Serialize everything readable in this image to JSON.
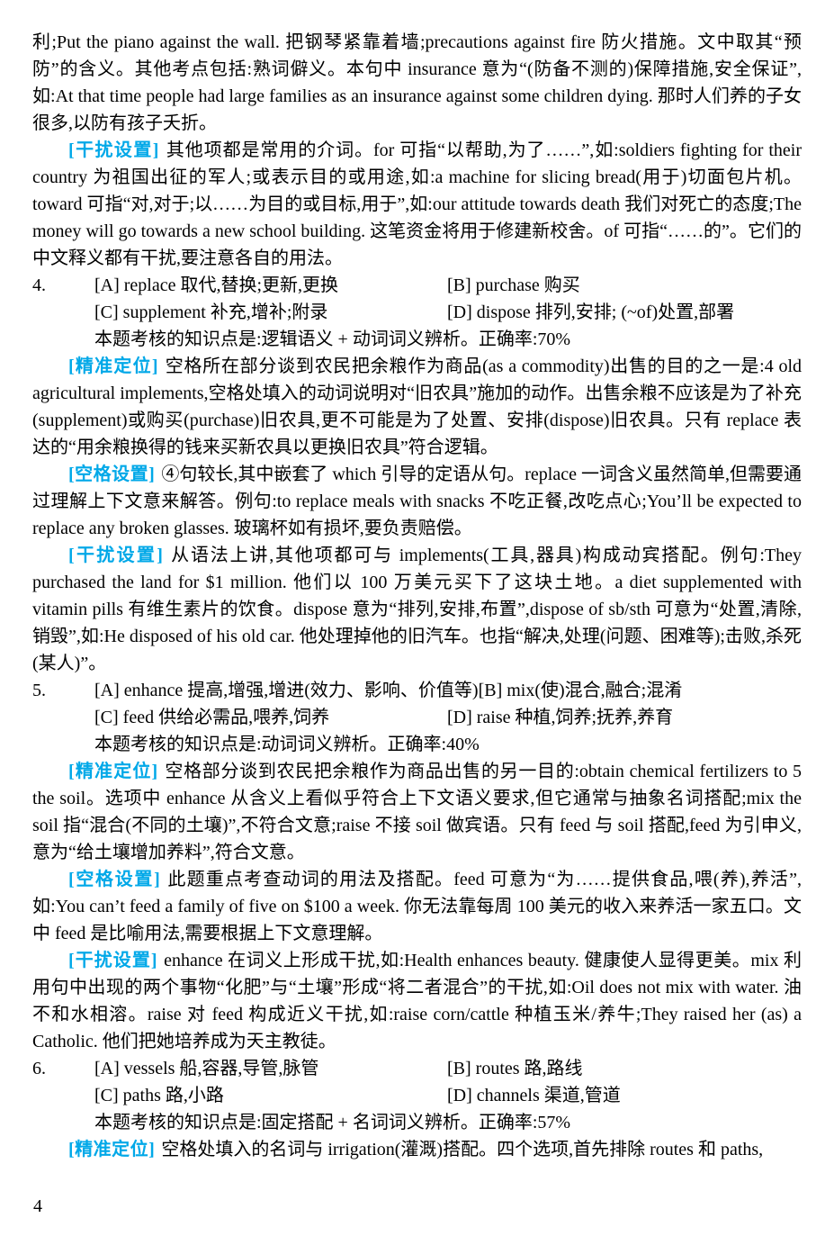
{
  "accent_color": "#00a8e8",
  "page_number": "4",
  "intro": {
    "para1": "利;Put the piano against the wall. 把钢琴紧靠着墙;precautions against fire 防火措施。文中取其“预防”的含义。其他考点包括:熟词僻义。本句中 insurance 意为“(防备不测的)保障措施,安全保证”,如:At that time people had large families as an insurance against some children dying. 那时人们养的子女很多,以防有孩子夭折。",
    "distractor": {
      "label": "[干扰设置]",
      "text": "其他项都是常用的介词。for 可指“以帮助,为了……”,如:soldiers fighting for their country 为祖国出征的军人;或表示目的或用途,如:a machine for slicing bread(用于)切面包片机。toward 可指“对,对于;以……为目的或目标,用于”,如:our attitude towards death 我们对死亡的态度;The money will go towards a new school building. 这笔资金将用于修建新校舍。of 可指“……的”。它们的中文释义都有干扰,要注意各自的用法。"
    }
  },
  "questions": [
    {
      "number": "4.",
      "options": {
        "a": "[A] replace 取代,替换;更新,更换",
        "b": "[B] purchase 购买",
        "c": "[C] supplement 补充,增补;附录",
        "d": "[D] dispose 排列,安排; (~of)处置,部署"
      },
      "knowledge": "本题考核的知识点是:逻辑语义 + 动词词义辨析。正确率:70%",
      "sections": [
        {
          "label": "[精准定位]",
          "text": "空格所在部分谈到农民把余粮作为商品(as a commodity)出售的目的之一是:4 old agricultural implements,空格处填入的动词说明对“旧农具”施加的动作。出售余粮不应该是为了补充(supplement)或购买(purchase)旧农具,更不可能是为了处置、安排(dispose)旧农具。只有 replace 表达的“用余粮换得的钱来买新农具以更换旧农具”符合逻辑。"
        },
        {
          "label": "[空格设置]",
          "text": "④句较长,其中嵌套了 which 引导的定语从句。replace 一词含义虽然简单,但需要通过理解上下文意来解答。例句:to replace meals with snacks 不吃正餐,改吃点心;You’ll be expected to replace any broken glasses. 玻璃杯如有损坏,要负责赔偿。"
        },
        {
          "label": "[干扰设置]",
          "text": "从语法上讲,其他项都可与 implements(工具,器具)构成动宾搭配。例句:They purchased the land for $1 million. 他们以 100 万美元买下了这块土地。a diet supplemented with vitamin pills 有维生素片的饮食。dispose 意为“排列,安排,布置”,dispose of sb/sth 可意为“处置,清除,销毁”,如:He disposed of his old car. 他处理掉他的旧汽车。也指“解决,处理(问题、困难等);击败,杀死(某人)”。"
        }
      ]
    },
    {
      "number": "5.",
      "options": {
        "a": "[A] enhance 提高,增强,增进(效力、影响、价值等)",
        "b": "[B] mix(使)混合,融合;混淆",
        "c": "[C] feed 供给必需品,喂养,饲养",
        "d": "[D] raise 种植,饲养;抚养,养育"
      },
      "knowledge": "本题考核的知识点是:动词词义辨析。正确率:40%",
      "sections": [
        {
          "label": "[精准定位]",
          "text": "空格部分谈到农民把余粮作为商品出售的另一目的:obtain chemical fertilizers to 5 the soil。选项中 enhance 从含义上看似乎符合上下文语义要求,但它通常与抽象名词搭配;mix the soil 指“混合(不同的土壤)”,不符合文意;raise 不接 soil 做宾语。只有 feed 与 soil 搭配,feed 为引申义,意为“给土壤增加养料”,符合文意。"
        },
        {
          "label": "[空格设置]",
          "text": "此题重点考查动词的用法及搭配。feed 可意为“为……提供食品,喂(养),养活”,如:You can’t feed a family of five on $100 a week. 你无法靠每周 100 美元的收入来养活一家五口。文中 feed 是比喻用法,需要根据上下文意理解。"
        },
        {
          "label": "[干扰设置]",
          "text": "enhance 在词义上形成干扰,如:Health enhances beauty. 健康使人显得更美。mix 利用句中出现的两个事物“化肥”与“土壤”形成“将二者混合”的干扰,如:Oil does not mix with water. 油不和水相溶。raise 对 feed 构成近义干扰,如:raise corn/cattle 种植玉米/养牛;They raised her (as) a Catholic. 他们把她培养成为天主教徒。"
        }
      ]
    },
    {
      "number": "6.",
      "options": {
        "a": "[A] vessels 船,容器,导管,脉管",
        "b": "[B] routes 路,路线",
        "c": "[C] paths 路,小路",
        "d": "[D] channels 渠道,管道"
      },
      "knowledge": "本题考核的知识点是:固定搭配 + 名词词义辨析。正确率:57%",
      "sections": [
        {
          "label": "[精准定位]",
          "text": "空格处填入的名词与 irrigation(灌溉)搭配。四个选项,首先排除 routes 和 paths,"
        }
      ]
    }
  ]
}
